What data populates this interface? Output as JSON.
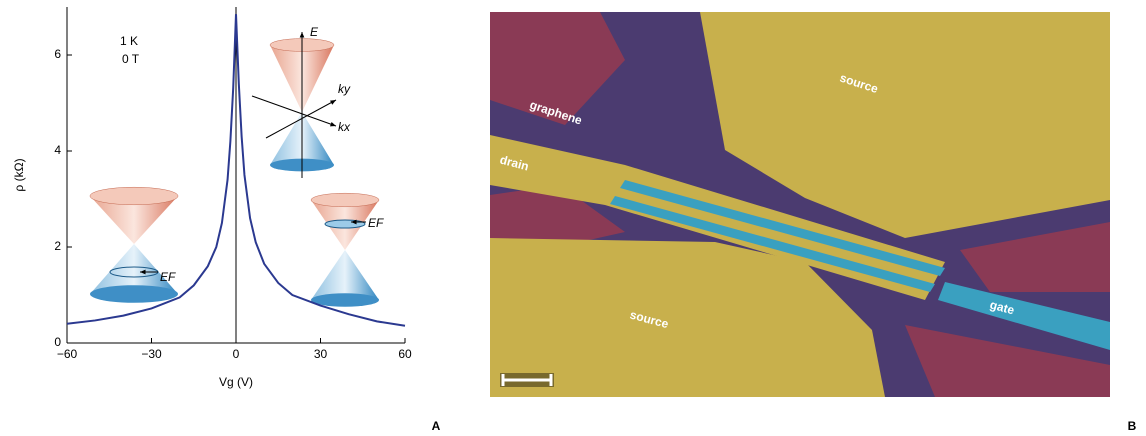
{
  "chart_data": {
    "type": "line",
    "x": [
      -60,
      -50,
      -40,
      -30,
      -20,
      -15,
      -10,
      -7,
      -5,
      -3,
      -2,
      -1,
      0,
      1,
      2,
      3,
      5,
      7,
      10,
      15,
      20,
      30,
      40,
      50,
      60
    ],
    "values": [
      0.4,
      0.47,
      0.57,
      0.72,
      0.95,
      1.2,
      1.6,
      2.0,
      2.5,
      3.4,
      4.2,
      5.3,
      6.85,
      5.4,
      4.3,
      3.5,
      2.6,
      2.1,
      1.65,
      1.25,
      1.0,
      0.78,
      0.6,
      0.45,
      0.36
    ],
    "color": "#2b3990",
    "xlim": [
      -60,
      60
    ],
    "xticks": [
      {
        "value": -60,
        "label": "−60"
      },
      {
        "value": -30,
        "label": "−30"
      },
      0,
      30,
      60
    ],
    "ylim": [
      0,
      7
    ],
    "yticks": [
      0,
      2,
      4,
      6
    ],
    "xlabel": "Vg (V)",
    "ylabel": "ρ (kΩ)",
    "annotations": [
      "1 K",
      "0 T",
      "E",
      "ky",
      "kx",
      "EF",
      "EF"
    ]
  },
  "figure": {
    "panel_labels": [
      "A",
      "B"
    ],
    "image_labels": [
      "graphene",
      "drain",
      "source",
      "source",
      "gate"
    ]
  }
}
